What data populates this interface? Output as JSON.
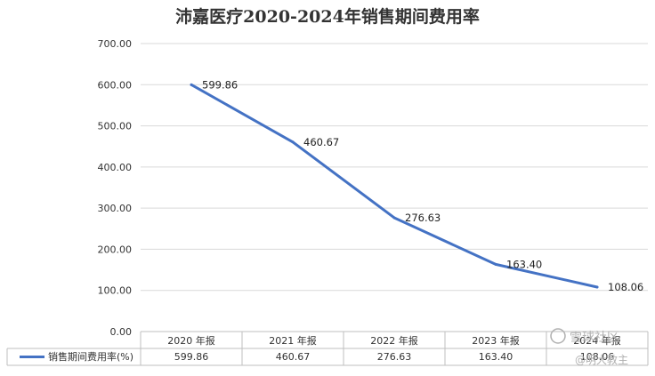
{
  "chart_data": {
    "type": "line",
    "title": "沛嘉医疗2020-2024年销售期间费用率",
    "categories": [
      "2020 年报",
      "2021 年报",
      "2022 年报",
      "2023 年报",
      "2024 年报"
    ],
    "series": [
      {
        "name": "销售期间费用率(%)",
        "values": [
          599.86,
          460.67,
          276.63,
          163.4,
          108.06
        ],
        "labels": [
          "599.86",
          "460.67",
          "276.63",
          "163.40",
          "108.06"
        ]
      }
    ],
    "yticks": [
      "0.00",
      "100.00",
      "200.00",
      "300.00",
      "400.00",
      "500.00",
      "600.00",
      "700.00"
    ],
    "ylim": [
      0,
      700
    ],
    "grid": true,
    "legend": "data-table-left",
    "color": "#4472c4"
  },
  "watermark": {
    "icon": "snowball-icon",
    "text1": "雪球社区",
    "text2": "@明大教主"
  }
}
